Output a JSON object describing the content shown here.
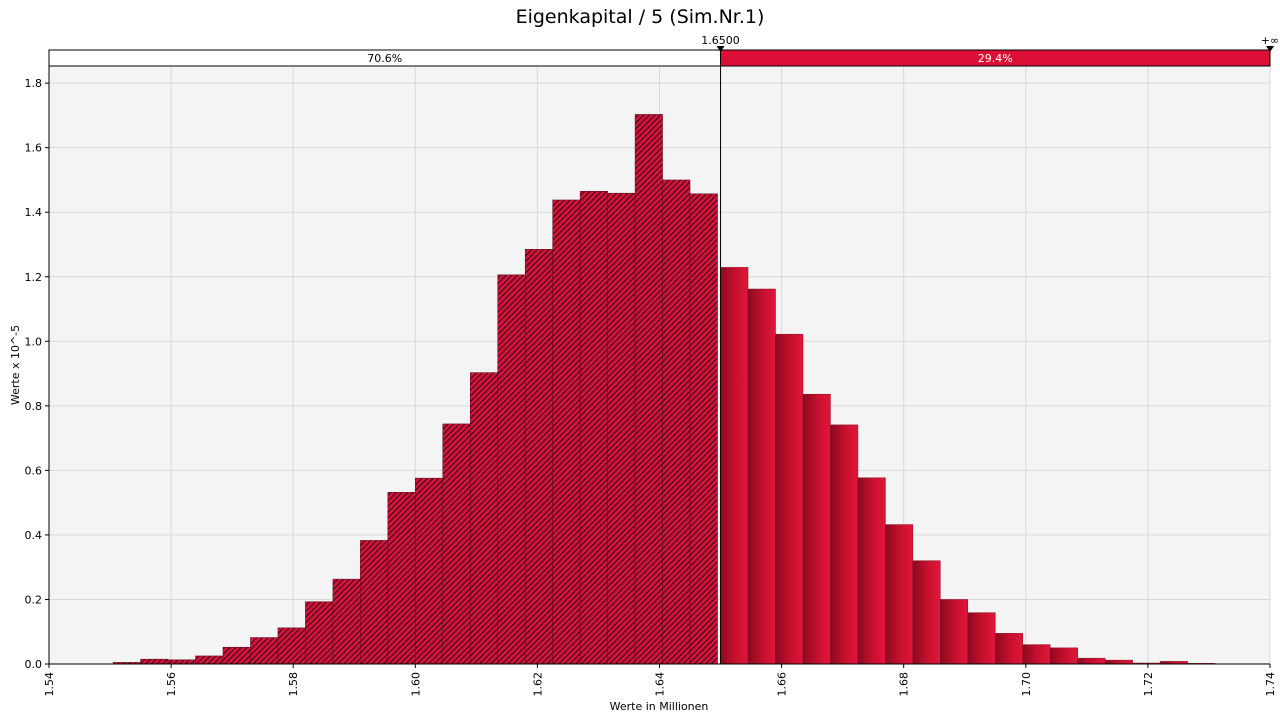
{
  "chart_data": {
    "type": "bar",
    "title": "Eigenkapital / 5 (Sim.Nr.1)",
    "xlabel": "Werte in Millionen",
    "ylabel": "Werte x 10^-5",
    "xlim": [
      1.54,
      1.74
    ],
    "ylim": [
      0,
      1.85
    ],
    "x_ticks": [
      "1.54",
      "1.56",
      "1.58",
      "1.60",
      "1.62",
      "1.64",
      "1.66",
      "1.68",
      "1.70",
      "1.72",
      "1.74"
    ],
    "y_ticks": [
      "0.0",
      "0.2",
      "0.4",
      "0.6",
      "0.8",
      "1.0",
      "1.2",
      "1.4",
      "1.6",
      "1.8"
    ],
    "grid": true,
    "bin_width": 0.0045,
    "bins": [
      {
        "x0": 1.5505,
        "value": 0.005
      },
      {
        "x0": 1.555,
        "value": 0.015
      },
      {
        "x0": 1.5595,
        "value": 0.013
      },
      {
        "x0": 1.564,
        "value": 0.025
      },
      {
        "x0": 1.5685,
        "value": 0.052
      },
      {
        "x0": 1.573,
        "value": 0.082
      },
      {
        "x0": 1.5775,
        "value": 0.112
      },
      {
        "x0": 1.582,
        "value": 0.193
      },
      {
        "x0": 1.5865,
        "value": 0.263
      },
      {
        "x0": 1.591,
        "value": 0.383
      },
      {
        "x0": 1.5955,
        "value": 0.532
      },
      {
        "x0": 1.6,
        "value": 0.576
      },
      {
        "x0": 1.6045,
        "value": 0.744
      },
      {
        "x0": 1.609,
        "value": 0.903
      },
      {
        "x0": 1.6135,
        "value": 1.206
      },
      {
        "x0": 1.618,
        "value": 1.285
      },
      {
        "x0": 1.6225,
        "value": 1.438
      },
      {
        "x0": 1.627,
        "value": 1.465
      },
      {
        "x0": 1.6315,
        "value": 1.459
      },
      {
        "x0": 1.636,
        "value": 1.703
      },
      {
        "x0": 1.6405,
        "value": 1.5
      },
      {
        "x0": 1.645,
        "value": 1.457
      },
      {
        "x0": 1.65,
        "value": 1.229
      },
      {
        "x0": 1.6545,
        "value": 1.162
      },
      {
        "x0": 1.659,
        "value": 1.022
      },
      {
        "x0": 1.6635,
        "value": 0.836
      },
      {
        "x0": 1.668,
        "value": 0.741
      },
      {
        "x0": 1.6725,
        "value": 0.577
      },
      {
        "x0": 1.677,
        "value": 0.432
      },
      {
        "x0": 1.6815,
        "value": 0.32
      },
      {
        "x0": 1.686,
        "value": 0.2
      },
      {
        "x0": 1.6905,
        "value": 0.159
      },
      {
        "x0": 1.695,
        "value": 0.095
      },
      {
        "x0": 1.6995,
        "value": 0.06
      },
      {
        "x0": 1.704,
        "value": 0.05
      },
      {
        "x0": 1.7085,
        "value": 0.018
      },
      {
        "x0": 1.713,
        "value": 0.012
      },
      {
        "x0": 1.7175,
        "value": 0.003
      },
      {
        "x0": 1.722,
        "value": 0.008
      },
      {
        "x0": 1.7265,
        "value": 0.002
      }
    ],
    "threshold": {
      "value": 1.65,
      "label": "1.6500",
      "right_limit_label": "+∞",
      "left_percent": "70.6%",
      "right_percent": "29.4%"
    },
    "colors": {
      "bar": "#c8102e",
      "bar_dark": "#8a0a1f",
      "hatch": "#2a0a14",
      "band_right": "#dc1036",
      "plot_bg": "#f4f4f4",
      "grid": "#d9d9d9"
    }
  }
}
